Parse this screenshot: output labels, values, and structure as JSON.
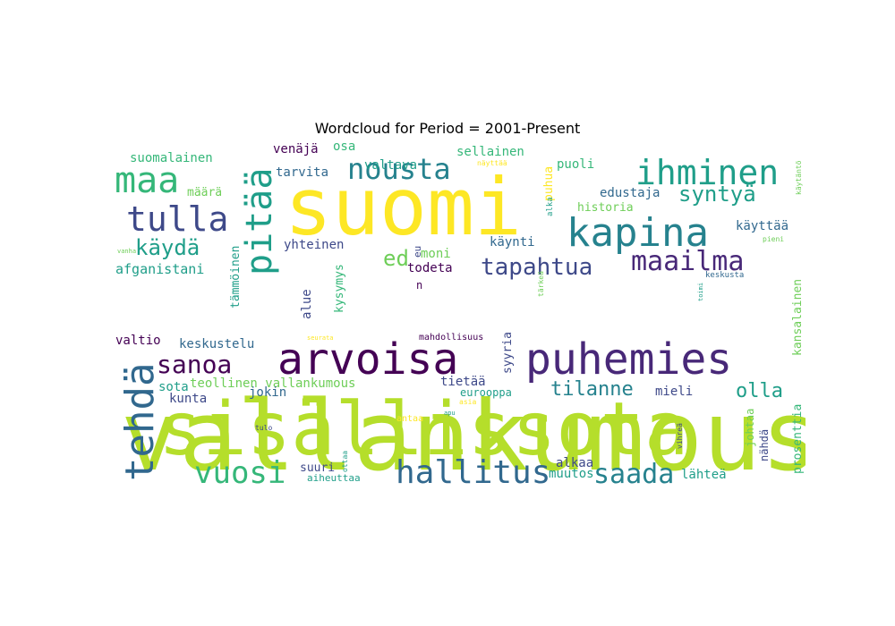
{
  "title": "Wordcloud for Period = 2001-Present",
  "colors": {
    "yellow": "#fde725",
    "lime": "#b5de2b",
    "green": "#6ece58",
    "teal_green": "#35b779",
    "teal": "#1f9e89",
    "blue_teal": "#26828e",
    "steel": "#31688e",
    "indigo": "#3e4989",
    "purple": "#482878",
    "dark": "#440154"
  },
  "chart_data": {
    "type": "wordcloud",
    "title": "Wordcloud for Period = 2001-Present",
    "words": [
      {
        "text": "vallankumous",
        "color": "lime"
      },
      {
        "text": "suomi",
        "color": "yellow"
      },
      {
        "text": "sisällissota",
        "color": "lime"
      },
      {
        "text": "arvoisa",
        "color": "dark"
      },
      {
        "text": "puhemies",
        "color": "purple"
      },
      {
        "text": "kapina",
        "color": "blue_teal"
      },
      {
        "text": "ihminen",
        "color": "teal"
      },
      {
        "text": "maa",
        "color": "teal_green"
      },
      {
        "text": "tulla",
        "color": "indigo"
      },
      {
        "text": "pitää",
        "color": "teal"
      },
      {
        "text": "nousta",
        "color": "blue_teal"
      },
      {
        "text": "maailma",
        "color": "purple"
      },
      {
        "text": "hallitus",
        "color": "steel"
      },
      {
        "text": "tehdä",
        "color": "steel"
      },
      {
        "text": "vuosi",
        "color": "teal_green"
      },
      {
        "text": "saada",
        "color": "blue_teal"
      },
      {
        "text": "sanoa",
        "color": "dark"
      },
      {
        "text": "tapahtua",
        "color": "indigo"
      },
      {
        "text": "käydä",
        "color": "teal"
      },
      {
        "text": "syntyä",
        "color": "teal"
      },
      {
        "text": "tilanne",
        "color": "blue_teal"
      },
      {
        "text": "olla",
        "color": "teal"
      },
      {
        "text": "ed",
        "color": "green"
      },
      {
        "text": "afganistani",
        "color": "teal"
      },
      {
        "text": "suomalainen",
        "color": "teal_green"
      },
      {
        "text": "venäjä",
        "color": "dark"
      },
      {
        "text": "osa",
        "color": "teal_green"
      },
      {
        "text": "valtava",
        "color": "teal"
      },
      {
        "text": "sellainen",
        "color": "teal_green"
      },
      {
        "text": "tarvita",
        "color": "steel"
      },
      {
        "text": "määrä",
        "color": "green"
      },
      {
        "text": "edustaja",
        "color": "steel"
      },
      {
        "text": "historia",
        "color": "green"
      },
      {
        "text": "käyttää",
        "color": "steel"
      },
      {
        "text": "puoli",
        "color": "teal_green"
      },
      {
        "text": "yhteinen",
        "color": "indigo"
      },
      {
        "text": "moni",
        "color": "green"
      },
      {
        "text": "käynti",
        "color": "steel"
      },
      {
        "text": "todeta",
        "color": "dark"
      },
      {
        "text": "keskustelu",
        "color": "steel"
      },
      {
        "text": "valtio",
        "color": "dark"
      },
      {
        "text": "teollinen vallankumous",
        "color": "green"
      },
      {
        "text": "sota",
        "color": "teal"
      },
      {
        "text": "kunta",
        "color": "indigo"
      },
      {
        "text": "jokin",
        "color": "steel"
      },
      {
        "text": "tietää",
        "color": "indigo"
      },
      {
        "text": "mieli",
        "color": "indigo"
      },
      {
        "text": "suuri",
        "color": "indigo"
      },
      {
        "text": "aiheuttaa",
        "color": "teal"
      },
      {
        "text": "alkaa",
        "color": "indigo"
      },
      {
        "text": "muutos",
        "color": "teal"
      },
      {
        "text": "lähteä",
        "color": "teal"
      },
      {
        "text": "tämmöinen",
        "color": "teal"
      },
      {
        "text": "kysymys",
        "color": "teal_green"
      },
      {
        "text": "alue",
        "color": "indigo"
      },
      {
        "text": "syyria",
        "color": "indigo"
      },
      {
        "text": "puhua",
        "color": "yellow"
      },
      {
        "text": "kansalainen",
        "color": "green"
      },
      {
        "text": "johtaa",
        "color": "green"
      },
      {
        "text": "prosenttia",
        "color": "teal_green"
      },
      {
        "text": "nähdä",
        "color": "indigo"
      },
      {
        "text": "eurooppa",
        "color": "teal"
      },
      {
        "text": "eu",
        "color": "indigo"
      },
      {
        "text": "n",
        "color": "dark"
      },
      {
        "text": "mahdollisuus",
        "color": "dark"
      },
      {
        "text": "keskusta",
        "color": "steel"
      },
      {
        "text": "pieni",
        "color": "green"
      },
      {
        "text": "vanha",
        "color": "green"
      },
      {
        "text": "tulo",
        "color": "indigo"
      },
      {
        "text": "antaa",
        "color": "yellow"
      },
      {
        "text": "vihreä",
        "color": "indigo"
      },
      {
        "text": "alka",
        "color": "teal"
      },
      {
        "text": "näyttää",
        "color": "yellow"
      },
      {
        "text": "käytäntö",
        "color": "green"
      },
      {
        "text": "tärkeä",
        "color": "green"
      },
      {
        "text": "toimi",
        "color": "teal"
      },
      {
        "text": "seurata",
        "color": "yellow"
      },
      {
        "text": "asia",
        "color": "yellow"
      },
      {
        "text": "ottaa",
        "color": "teal"
      },
      {
        "text": "apu",
        "color": "teal"
      }
    ]
  }
}
